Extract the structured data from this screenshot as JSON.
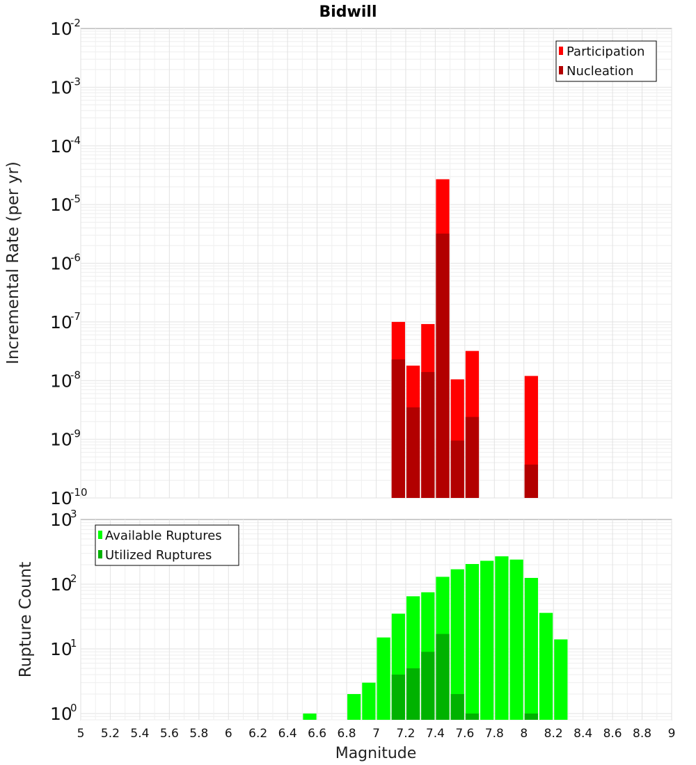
{
  "chart_data": [
    {
      "type": "bar",
      "title": "Bidwill",
      "ylabel": "Incremental Rate (per yr)",
      "xlabel": "",
      "yscale": "log",
      "ylim": [
        1e-10,
        0.01
      ],
      "xlim": [
        5,
        9
      ],
      "bin_width": 0.1,
      "y_tick_exponents": [
        -2,
        -3,
        -4,
        -5,
        -6,
        -7,
        -8,
        -9,
        -10
      ],
      "grid": true,
      "legend_position": "top-right",
      "series": [
        {
          "name": "Participation",
          "color": "#ff0000",
          "x": [
            7.15,
            7.25,
            7.35,
            7.45,
            7.55,
            7.65,
            8.05
          ],
          "values": [
            1e-07,
            1.8e-08,
            9.2e-08,
            2.7e-05,
            1.05e-08,
            3.2e-08,
            1.2e-08
          ]
        },
        {
          "name": "Nucleation",
          "color": "#b20000",
          "x": [
            7.15,
            7.25,
            7.35,
            7.45,
            7.55,
            7.65,
            8.05
          ],
          "values": [
            2.3e-08,
            3.5e-09,
            1.4e-08,
            3.2e-06,
            9.5e-10,
            2.4e-09,
            3.7e-10
          ]
        }
      ]
    },
    {
      "type": "bar",
      "title": "",
      "ylabel": "Rupture Count",
      "xlabel": "Magnitude",
      "yscale": "log",
      "ylim": [
        0.8,
        1000
      ],
      "xlim": [
        5,
        9
      ],
      "bin_width": 0.1,
      "y_tick_exponents": [
        3,
        2,
        1,
        0
      ],
      "x_ticks": [
        "5",
        "5.2",
        "5.4",
        "5.6",
        "5.8",
        "6",
        "6.2",
        "6.4",
        "6.6",
        "6.8",
        "7",
        "7.2",
        "7.4",
        "7.6",
        "7.8",
        "8",
        "8.2",
        "8.4",
        "8.6",
        "8.8",
        "9"
      ],
      "grid": true,
      "legend_position": "top-left",
      "series": [
        {
          "name": "Available Ruptures",
          "color": "#00ff00",
          "x": [
            6.55,
            6.85,
            6.95,
            7.05,
            7.15,
            7.25,
            7.35,
            7.45,
            7.55,
            7.65,
            7.75,
            7.85,
            7.95,
            8.05,
            8.15,
            8.25
          ],
          "values": [
            1,
            2,
            3,
            15,
            35,
            65,
            75,
            130,
            170,
            205,
            230,
            270,
            240,
            125,
            36,
            14
          ]
        },
        {
          "name": "Utilized Ruptures",
          "color": "#00b200",
          "x": [
            7.15,
            7.25,
            7.35,
            7.45,
            7.55,
            7.65,
            8.05
          ],
          "values": [
            4,
            5,
            9,
            17,
            2,
            1,
            1
          ]
        }
      ]
    }
  ]
}
